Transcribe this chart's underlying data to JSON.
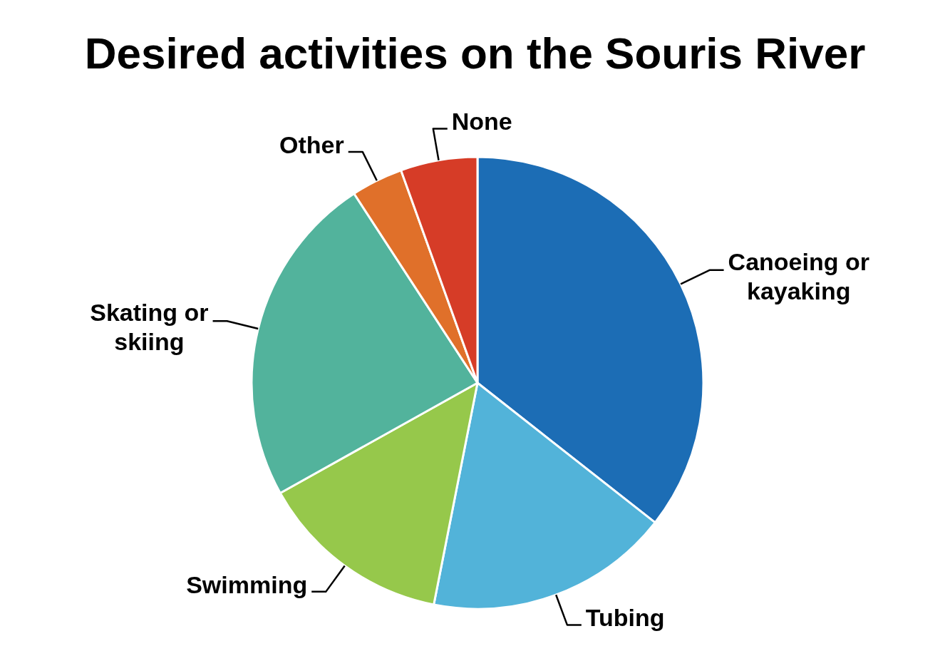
{
  "chart_data": {
    "type": "pie",
    "title": "Desired activities on the Souris River",
    "categories": [
      "Canoeing or kayaking",
      "Tubing",
      "Swimming",
      "Skating or skiing",
      "Other",
      "None"
    ],
    "values": [
      35.6,
      17.5,
      13.8,
      23.9,
      3.7,
      5.5
    ],
    "colors": [
      "#1c6db5",
      "#52b3d9",
      "#96c84b",
      "#52b39c",
      "#e0702a",
      "#d63c27"
    ]
  }
}
